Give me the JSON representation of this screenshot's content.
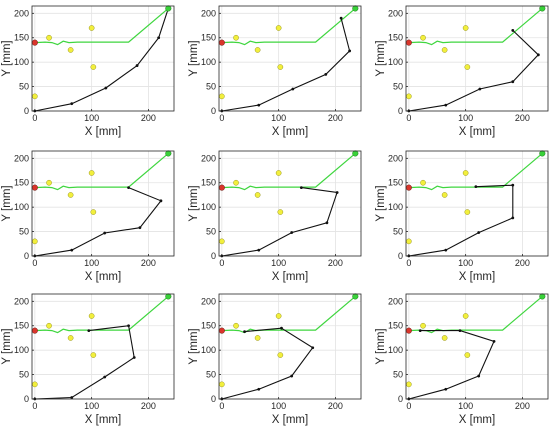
{
  "chart_data": [
    {
      "type": "line",
      "xlabel": "X [mm]",
      "ylabel": "Y [mm]",
      "xlim": [
        -5,
        245
      ],
      "ylim": [
        0,
        215
      ],
      "xticks": [
        0,
        100,
        200
      ],
      "yticks": [
        0,
        50,
        100,
        150,
        200
      ],
      "grid": true,
      "obstacles": [
        [
          25,
          150
        ],
        [
          63,
          125
        ],
        [
          100,
          170
        ],
        [
          103,
          90
        ],
        [
          0,
          30
        ]
      ],
      "start": [
        0,
        140
      ],
      "goal": [
        235,
        210
      ],
      "path": [
        [
          0,
          140
        ],
        [
          18,
          141
        ],
        [
          30,
          140
        ],
        [
          40,
          136
        ],
        [
          50,
          143
        ],
        [
          60,
          140
        ],
        [
          75,
          141
        ],
        [
          165,
          141
        ],
        [
          235,
          210
        ]
      ],
      "arm": [
        [
          0,
          0
        ],
        [
          65,
          15
        ],
        [
          125,
          47
        ],
        [
          180,
          93
        ],
        [
          218,
          150
        ],
        [
          235,
          210
        ]
      ]
    },
    {
      "type": "line",
      "xlabel": "X [mm]",
      "ylabel": "Y [mm]",
      "xlim": [
        -5,
        245
      ],
      "ylim": [
        0,
        215
      ],
      "xticks": [
        0,
        100,
        200
      ],
      "yticks": [
        0,
        50,
        100,
        150,
        200
      ],
      "grid": true,
      "obstacles": [
        [
          25,
          150
        ],
        [
          63,
          125
        ],
        [
          100,
          170
        ],
        [
          103,
          90
        ],
        [
          0,
          30
        ]
      ],
      "start": [
        0,
        140
      ],
      "goal": [
        235,
        210
      ],
      "path": [
        [
          0,
          140
        ],
        [
          18,
          141
        ],
        [
          30,
          140
        ],
        [
          40,
          136
        ],
        [
          50,
          143
        ],
        [
          60,
          140
        ],
        [
          75,
          141
        ],
        [
          165,
          141
        ],
        [
          235,
          210
        ]
      ],
      "arm": [
        [
          0,
          0
        ],
        [
          65,
          12
        ],
        [
          125,
          45
        ],
        [
          183,
          75
        ],
        [
          225,
          123
        ],
        [
          210,
          190
        ]
      ]
    },
    {
      "type": "line",
      "xlabel": "X [mm]",
      "ylabel": "Y [mm]",
      "xlim": [
        -5,
        245
      ],
      "ylim": [
        0,
        215
      ],
      "xticks": [
        0,
        100,
        200
      ],
      "yticks": [
        0,
        50,
        100,
        150,
        200
      ],
      "grid": true,
      "obstacles": [
        [
          25,
          150
        ],
        [
          63,
          125
        ],
        [
          100,
          170
        ],
        [
          103,
          90
        ],
        [
          0,
          30
        ]
      ],
      "start": [
        0,
        140
      ],
      "goal": [
        235,
        210
      ],
      "path": [
        [
          0,
          140
        ],
        [
          18,
          141
        ],
        [
          30,
          140
        ],
        [
          40,
          136
        ],
        [
          50,
          143
        ],
        [
          60,
          140
        ],
        [
          75,
          141
        ],
        [
          165,
          141
        ],
        [
          235,
          210
        ]
      ],
      "arm": [
        [
          0,
          0
        ],
        [
          65,
          12
        ],
        [
          125,
          45
        ],
        [
          183,
          60
        ],
        [
          228,
          115
        ],
        [
          183,
          165
        ]
      ]
    },
    {
      "type": "line",
      "xlabel": "X [mm]",
      "ylabel": "Y [mm]",
      "xlim": [
        -5,
        245
      ],
      "ylim": [
        0,
        215
      ],
      "xticks": [
        0,
        100,
        200
      ],
      "yticks": [
        0,
        50,
        100,
        150,
        200
      ],
      "grid": true,
      "obstacles": [
        [
          25,
          150
        ],
        [
          63,
          125
        ],
        [
          100,
          170
        ],
        [
          103,
          90
        ],
        [
          0,
          30
        ]
      ],
      "start": [
        0,
        140
      ],
      "goal": [
        235,
        210
      ],
      "path": [
        [
          0,
          140
        ],
        [
          18,
          141
        ],
        [
          30,
          140
        ],
        [
          40,
          136
        ],
        [
          50,
          143
        ],
        [
          60,
          140
        ],
        [
          75,
          141
        ],
        [
          165,
          141
        ],
        [
          235,
          210
        ]
      ],
      "arm": [
        [
          0,
          0
        ],
        [
          65,
          12
        ],
        [
          123,
          47
        ],
        [
          185,
          58
        ],
        [
          222,
          113
        ],
        [
          165,
          140
        ]
      ]
    },
    {
      "type": "line",
      "xlabel": "X [mm]",
      "ylabel": "Y [mm]",
      "xlim": [
        -5,
        245
      ],
      "ylim": [
        0,
        215
      ],
      "xticks": [
        0,
        100,
        200
      ],
      "yticks": [
        0,
        50,
        100,
        150,
        200
      ],
      "grid": true,
      "obstacles": [
        [
          25,
          150
        ],
        [
          63,
          125
        ],
        [
          100,
          170
        ],
        [
          103,
          90
        ],
        [
          0,
          30
        ]
      ],
      "start": [
        0,
        140
      ],
      "goal": [
        235,
        210
      ],
      "path": [
        [
          0,
          140
        ],
        [
          18,
          141
        ],
        [
          30,
          140
        ],
        [
          40,
          136
        ],
        [
          50,
          143
        ],
        [
          60,
          140
        ],
        [
          75,
          141
        ],
        [
          165,
          141
        ],
        [
          235,
          210
        ]
      ],
      "arm": [
        [
          0,
          0
        ],
        [
          65,
          12
        ],
        [
          123,
          48
        ],
        [
          185,
          68
        ],
        [
          203,
          130
        ],
        [
          140,
          140
        ]
      ]
    },
    {
      "type": "line",
      "xlabel": "X [mm]",
      "ylabel": "Y [mm]",
      "xlim": [
        -5,
        245
      ],
      "ylim": [
        0,
        215
      ],
      "xticks": [
        0,
        100,
        200
      ],
      "yticks": [
        0,
        50,
        100,
        150,
        200
      ],
      "grid": true,
      "obstacles": [
        [
          25,
          150
        ],
        [
          63,
          125
        ],
        [
          100,
          170
        ],
        [
          103,
          90
        ],
        [
          0,
          30
        ]
      ],
      "start": [
        0,
        140
      ],
      "goal": [
        235,
        210
      ],
      "path": [
        [
          0,
          140
        ],
        [
          18,
          141
        ],
        [
          30,
          140
        ],
        [
          40,
          136
        ],
        [
          50,
          143
        ],
        [
          60,
          140
        ],
        [
          75,
          141
        ],
        [
          165,
          141
        ],
        [
          235,
          210
        ]
      ],
      "arm": [
        [
          0,
          0
        ],
        [
          65,
          12
        ],
        [
          123,
          48
        ],
        [
          183,
          78
        ],
        [
          183,
          145
        ],
        [
          118,
          142
        ]
      ]
    },
    {
      "type": "line",
      "xlabel": "X [mm]",
      "ylabel": "Y [mm]",
      "xlim": [
        -5,
        245
      ],
      "ylim": [
        0,
        215
      ],
      "xticks": [
        0,
        100,
        200
      ],
      "yticks": [
        0,
        50,
        100,
        150,
        200
      ],
      "grid": true,
      "obstacles": [
        [
          25,
          150
        ],
        [
          63,
          125
        ],
        [
          100,
          170
        ],
        [
          103,
          90
        ],
        [
          0,
          30
        ]
      ],
      "start": [
        0,
        140
      ],
      "goal": [
        235,
        210
      ],
      "path": [
        [
          0,
          140
        ],
        [
          18,
          141
        ],
        [
          30,
          140
        ],
        [
          40,
          136
        ],
        [
          50,
          143
        ],
        [
          60,
          140
        ],
        [
          75,
          141
        ],
        [
          165,
          141
        ],
        [
          235,
          210
        ]
      ],
      "arm": [
        [
          0,
          0
        ],
        [
          65,
          3
        ],
        [
          123,
          45
        ],
        [
          175,
          85
        ],
        [
          165,
          150
        ],
        [
          95,
          140
        ]
      ]
    },
    {
      "type": "line",
      "xlabel": "X [mm]",
      "ylabel": "Y [mm]",
      "xlim": [
        -5,
        245
      ],
      "ylim": [
        0,
        215
      ],
      "xticks": [
        0,
        100,
        200
      ],
      "yticks": [
        0,
        50,
        100,
        150,
        200
      ],
      "grid": true,
      "obstacles": [
        [
          25,
          150
        ],
        [
          63,
          125
        ],
        [
          100,
          170
        ],
        [
          103,
          90
        ],
        [
          0,
          30
        ]
      ],
      "start": [
        0,
        140
      ],
      "goal": [
        235,
        210
      ],
      "path": [
        [
          0,
          140
        ],
        [
          18,
          141
        ],
        [
          30,
          140
        ],
        [
          40,
          136
        ],
        [
          50,
          143
        ],
        [
          60,
          140
        ],
        [
          75,
          141
        ],
        [
          165,
          141
        ],
        [
          235,
          210
        ]
      ],
      "arm": [
        [
          0,
          0
        ],
        [
          65,
          20
        ],
        [
          123,
          47
        ],
        [
          160,
          105
        ],
        [
          105,
          145
        ],
        [
          40,
          138
        ]
      ]
    },
    {
      "type": "line",
      "xlabel": "X [mm]",
      "ylabel": "Y [mm]",
      "xlim": [
        -5,
        245
      ],
      "ylim": [
        0,
        215
      ],
      "xticks": [
        0,
        100,
        200
      ],
      "yticks": [
        0,
        50,
        100,
        150,
        200
      ],
      "grid": true,
      "obstacles": [
        [
          25,
          150
        ],
        [
          63,
          125
        ],
        [
          100,
          170
        ],
        [
          103,
          90
        ],
        [
          0,
          30
        ]
      ],
      "start": [
        0,
        140
      ],
      "goal": [
        235,
        210
      ],
      "path": [
        [
          0,
          140
        ],
        [
          18,
          141
        ],
        [
          30,
          140
        ],
        [
          40,
          136
        ],
        [
          50,
          143
        ],
        [
          60,
          140
        ],
        [
          75,
          141
        ],
        [
          165,
          141
        ],
        [
          235,
          210
        ]
      ],
      "arm": [
        [
          0,
          0
        ],
        [
          65,
          20
        ],
        [
          123,
          47
        ],
        [
          150,
          118
        ],
        [
          90,
          140
        ],
        [
          20,
          140
        ]
      ]
    }
  ]
}
